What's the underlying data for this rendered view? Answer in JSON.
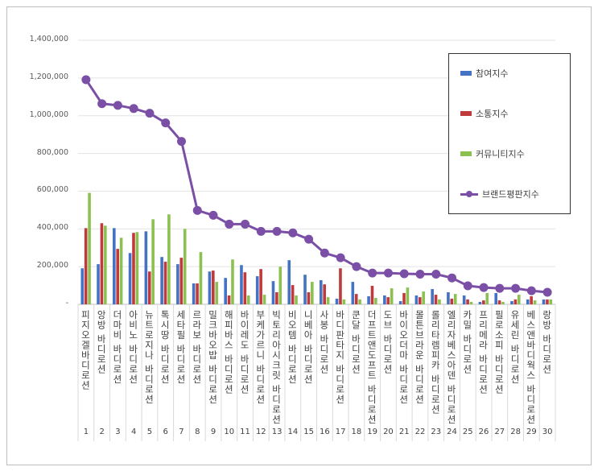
{
  "chart_data": {
    "type": "bar",
    "title": "",
    "xlabel": "",
    "ylabel": "",
    "ylim": [
      0,
      1400000
    ],
    "yticks": [
      "-",
      "200,000",
      "400,000",
      "600,000",
      "800,000",
      "1,000,000",
      "1,200,000",
      "1,400,000"
    ],
    "ytick_values": [
      0,
      200000,
      400000,
      600000,
      800000,
      1000000,
      1200000,
      1400000
    ],
    "grid": true,
    "legend_position": "top-right",
    "categories": [
      "피지오겔바디로션",
      "앙방 바디로션",
      "더마비 바디로션",
      "아비노 바디로션",
      "뉴트로지나 바디로션",
      "톡시땅 바디로션",
      "세타필 바디로션",
      "르라보 바디로션",
      "밀크바오밥 바디로션",
      "해피바스 바디로션",
      "바이레도 바디로션",
      "부케가르니 바디로션",
      "빅토리아시크릿 바디로션",
      "비오템 바디로션",
      "니베아 바디로션",
      "사봉 바디로션",
      "바디판타지 바디로션",
      "쿤달 바디로션",
      "더프트앤도프트 바디로션",
      "도브 바디로션",
      "바이오더마 바디로션",
      "몰튼브라운 바디로션",
      "롤리타렘피카 바디로션",
      "엘리자베스아덴 바디로션",
      "카밀 바디로션",
      "프리메라 바디로션",
      "필로소피 바디로션",
      "유세린 바디로션",
      "베스앤바디웍스 바디로션",
      "랑방 바디로션"
    ],
    "ranks": [
      "1",
      "2",
      "3",
      "4",
      "5",
      "6",
      "7",
      "8",
      "9",
      "10",
      "11",
      "12",
      "13",
      "14",
      "15",
      "16",
      "17",
      "18",
      "19",
      "20",
      "21",
      "22",
      "23",
      "24",
      "25",
      "26",
      "27",
      "28",
      "29",
      "30"
    ],
    "series": [
      {
        "name": "참여지수",
        "type": "bar",
        "color": "#4472c4",
        "values": [
          191000,
          213000,
          404000,
          272000,
          387000,
          251000,
          213000,
          111000,
          174000,
          140000,
          208000,
          149000,
          123000,
          234000,
          157000,
          128000,
          30000,
          119000,
          43000,
          47000,
          17000,
          47000,
          81000,
          64000,
          47000,
          13000,
          60000,
          17000,
          26000,
          26000
        ]
      },
      {
        "name": "소통지수",
        "type": "bar",
        "color": "#c0393b",
        "values": [
          404000,
          430000,
          294000,
          379000,
          174000,
          226000,
          247000,
          111000,
          179000,
          47000,
          170000,
          187000,
          64000,
          102000,
          64000,
          106000,
          191000,
          55000,
          98000,
          38000,
          60000,
          38000,
          51000,
          30000,
          26000,
          21000,
          21000,
          26000,
          43000,
          26000
        ]
      },
      {
        "name": "커뮤니티지수",
        "type": "bar",
        "color": "#8cc152",
        "values": [
          591000,
          417000,
          353000,
          383000,
          451000,
          477000,
          400000,
          277000,
          119000,
          238000,
          47000,
          51000,
          200000,
          47000,
          119000,
          38000,
          26000,
          26000,
          34000,
          85000,
          89000,
          68000,
          26000,
          55000,
          13000,
          60000,
          13000,
          51000,
          21000,
          26000
        ]
      },
      {
        "name": "브랜드평판지수",
        "type": "line",
        "color": "#7b4fa6",
        "values": [
          1191000,
          1064000,
          1055000,
          1038000,
          1013000,
          962000,
          864000,
          498000,
          472000,
          425000,
          425000,
          387000,
          387000,
          379000,
          345000,
          272000,
          247000,
          200000,
          166000,
          166000,
          162000,
          160000,
          160000,
          140000,
          98000,
          89000,
          85000,
          85000,
          72000,
          64000
        ]
      }
    ]
  }
}
